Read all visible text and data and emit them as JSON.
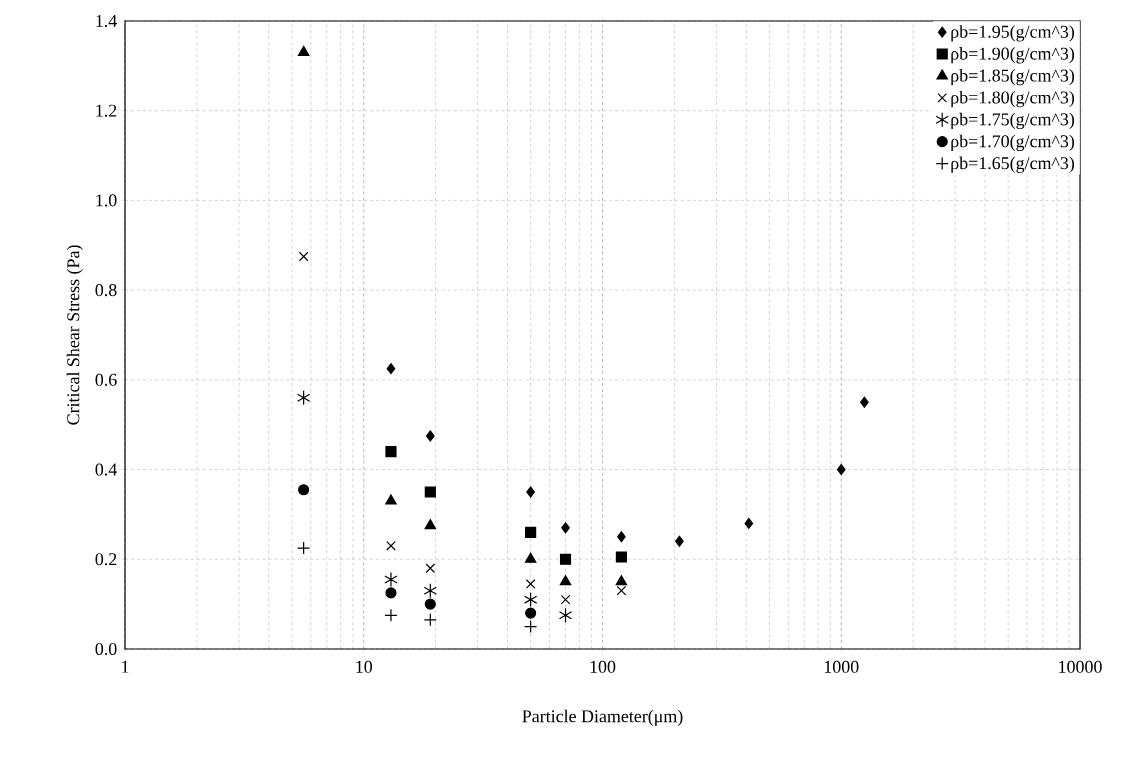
{
  "chart_data": {
    "type": "scatter",
    "xlabel": "Particle Diameter(μm)",
    "ylabel": "Critical Shear Stress (Pa)",
    "log": "x",
    "grid": true,
    "legend": "top right",
    "xlim": [
      1,
      10000
    ],
    "xticks": [
      1,
      10,
      100,
      1000,
      10000
    ],
    "ylim": [
      0,
      1.4
    ],
    "yticks": [
      {
        "value": 0,
        "label": "0.0"
      },
      {
        "value": 0.2,
        "label": "0.2"
      },
      {
        "value": 0.4,
        "label": "0.4"
      },
      {
        "value": 0.6,
        "label": "0.6"
      },
      {
        "value": 0.8,
        "label": "0.8"
      },
      {
        "value": 1.0,
        "label": "1.0"
      },
      {
        "value": 1.2,
        "label": "1.2"
      },
      {
        "value": 1.4,
        "label": "1.4"
      }
    ],
    "series": [
      {
        "name": "ρb=1.95(g/cm^3)",
        "color": "#000000",
        "marker": "diamond",
        "x": [
          13,
          19,
          50,
          70,
          120,
          210,
          410,
          1000,
          1250
        ],
        "values": [
          0.625,
          0.475,
          0.35,
          0.27,
          0.25,
          0.24,
          0.28,
          0.4,
          0.55
        ]
      },
      {
        "name": "ρb=1.90(g/cm^3)",
        "color": "#000000",
        "marker": "square",
        "x": [
          13,
          19,
          50,
          70,
          120
        ],
        "values": [
          0.44,
          0.35,
          0.26,
          0.2,
          0.205
        ]
      },
      {
        "name": "ρb=1.85(g/cm^3)",
        "color": "#000000",
        "marker": "triangle",
        "x": [
          5.6,
          13,
          19,
          50,
          70,
          120
        ],
        "values": [
          1.33,
          0.33,
          0.275,
          0.2,
          0.15,
          0.15
        ]
      },
      {
        "name": "ρb=1.80(g/cm^3)",
        "color": "#000000",
        "marker": "cross",
        "x": [
          5.6,
          13,
          19,
          50,
          70,
          120
        ],
        "values": [
          0.875,
          0.23,
          0.18,
          0.145,
          0.11,
          0.13
        ]
      },
      {
        "name": "ρb=1.75(g/cm^3)",
        "color": "#000000",
        "x": [
          5.6,
          13,
          19,
          50,
          70
        ],
        "values": [
          0.56,
          0.155,
          0.13,
          0.11,
          0.075
        ]
      },
      {
        "name": "ρb=1.70(g/cm^3)",
        "color": "#000000",
        "marker": "circle",
        "x": [
          5.6,
          13,
          19,
          50
        ],
        "values": [
          0.355,
          0.125,
          0.1,
          0.08
        ]
      },
      {
        "name": "ρb=1.65(g/cm^3)",
        "color": "#000000",
        "marker": "plus",
        "x": [
          5.6,
          13,
          19,
          50
        ],
        "values": [
          0.225,
          0.075,
          0.065,
          0.05
        ]
      }
    ]
  }
}
